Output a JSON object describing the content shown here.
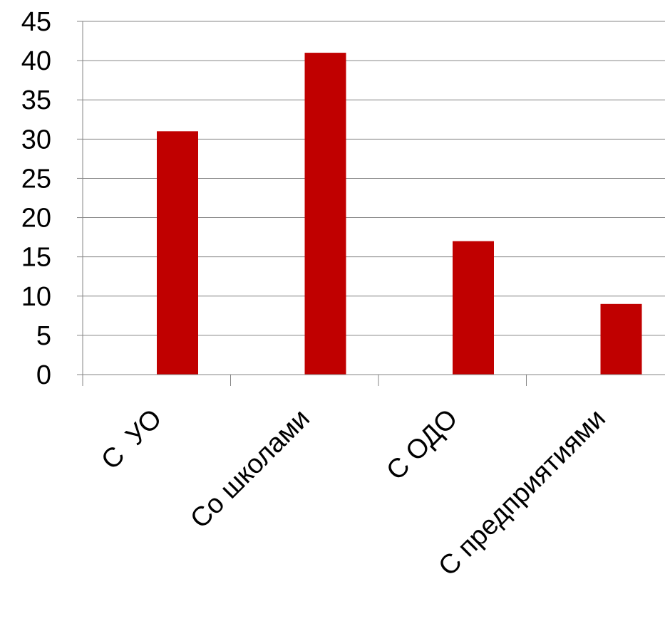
{
  "chart_data": {
    "type": "bar",
    "categories": [
      "С  УО",
      "Со школами",
      "С ОДО",
      "С предприятиями"
    ],
    "values": [
      31,
      41,
      17,
      9
    ],
    "title": "",
    "xlabel": "",
    "ylabel": "",
    "ylim": [
      0,
      45
    ],
    "yticks": [
      0,
      5,
      10,
      15,
      20,
      25,
      30,
      35,
      40,
      45
    ],
    "grid": true,
    "legend": "none",
    "colors": {
      "bar": "#C00000",
      "grid": "#868686",
      "axis": "#868686",
      "text": "#000000"
    }
  }
}
